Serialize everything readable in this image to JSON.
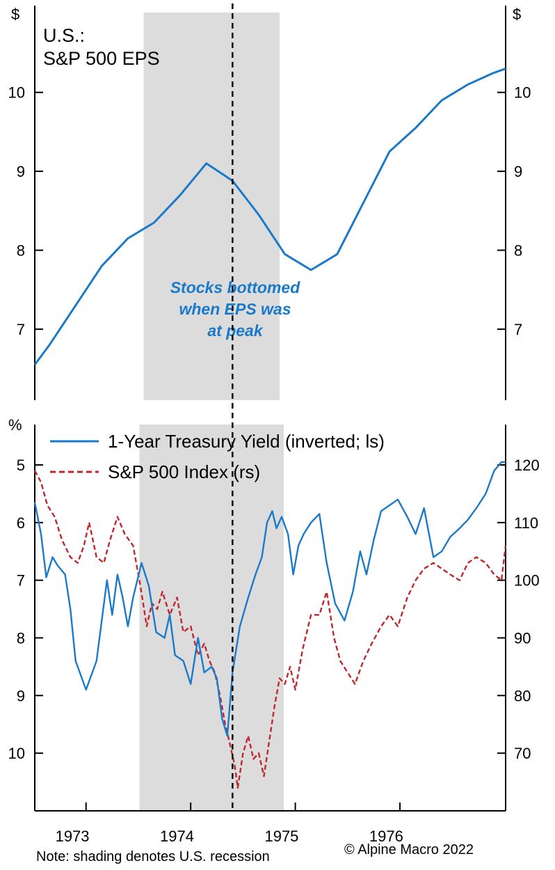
{
  "chart_data": [
    {
      "type": "line",
      "title": "U.S.:",
      "subtitle": "S&P 500 EPS",
      "y_unit_left": "$",
      "y_unit_right": "$",
      "ylim": [
        6.1,
        11.1
      ],
      "yticks": [
        7,
        8,
        9,
        10
      ],
      "annotation": [
        "Stocks bottomed",
        "when EPS was",
        "at peak"
      ],
      "recession": [
        1973.9,
        1975.2
      ],
      "marker_line": 1974.75,
      "color": "#1a7ac9",
      "x": [
        1972.86,
        1973.0,
        1973.25,
        1973.5,
        1973.75,
        1974.0,
        1974.25,
        1974.5,
        1974.75,
        1975.0,
        1975.25,
        1975.5,
        1975.75,
        1976.0,
        1976.25,
        1976.5,
        1976.75,
        1977.0,
        1977.25,
        1977.36
      ],
      "values": [
        6.55,
        6.8,
        7.3,
        7.8,
        8.15,
        8.35,
        8.7,
        9.1,
        8.88,
        8.45,
        7.95,
        7.75,
        7.95,
        8.6,
        9.25,
        9.55,
        9.9,
        10.1,
        10.25,
        10.3
      ]
    },
    {
      "type": "line",
      "y_unit_left": "%",
      "ylim_left": [
        11.0,
        4.3
      ],
      "yticks_left": [
        5,
        6,
        7,
        8,
        9,
        10
      ],
      "ylim_right": [
        60,
        127
      ],
      "yticks_right": [
        70,
        80,
        90,
        100,
        110,
        120
      ],
      "xticks": [
        "1973",
        "1974",
        "1975",
        "1976"
      ],
      "x_range": [
        1972.86,
        1977.36
      ],
      "series": [
        {
          "name": "1-Year Treasury Yield (inverted; ls)",
          "axis": "left",
          "color": "#1a7ac9",
          "style": "solid",
          "x": [
            1972.86,
            1972.92,
            1972.97,
            1973.03,
            1973.08,
            1973.15,
            1973.2,
            1973.25,
            1973.35,
            1973.45,
            1973.55,
            1973.6,
            1973.65,
            1973.7,
            1973.75,
            1973.8,
            1973.88,
            1973.95,
            1974.02,
            1974.1,
            1974.15,
            1974.2,
            1974.28,
            1974.35,
            1974.42,
            1974.48,
            1974.55,
            1974.6,
            1974.65,
            1974.7,
            1974.75,
            1974.82,
            1974.9,
            1974.97,
            1975.03,
            1975.08,
            1975.13,
            1975.17,
            1975.22,
            1975.28,
            1975.33,
            1975.38,
            1975.43,
            1975.5,
            1975.58,
            1975.65,
            1975.73,
            1975.82,
            1975.9,
            1975.97,
            1976.03,
            1976.1,
            1976.17,
            1976.25,
            1976.33,
            1976.42,
            1976.5,
            1976.58,
            1976.67,
            1976.75,
            1976.83,
            1976.92,
            1977.0,
            1977.08,
            1977.17,
            1977.25,
            1977.32,
            1977.36
          ],
          "values": [
            5.65,
            6.2,
            6.95,
            6.6,
            6.75,
            6.9,
            7.5,
            8.4,
            8.9,
            8.4,
            7.0,
            7.6,
            6.9,
            7.3,
            7.8,
            7.3,
            6.7,
            7.1,
            7.9,
            8.0,
            7.6,
            8.3,
            8.4,
            8.8,
            8.0,
            8.6,
            8.5,
            8.7,
            9.4,
            9.7,
            8.6,
            7.8,
            7.3,
            6.9,
            6.6,
            6.0,
            5.8,
            6.1,
            5.9,
            6.2,
            6.9,
            6.4,
            6.2,
            6.0,
            5.85,
            6.7,
            7.4,
            7.7,
            7.2,
            6.5,
            6.9,
            6.3,
            5.8,
            5.7,
            5.6,
            5.9,
            6.2,
            5.75,
            6.6,
            6.5,
            6.25,
            6.1,
            5.95,
            5.75,
            5.5,
            5.1,
            4.95,
            4.95
          ]
        },
        {
          "name": "S&P 500 Index (rs)",
          "axis": "right",
          "color": "#c0272d",
          "style": "dashed",
          "x": [
            1972.86,
            1972.92,
            1972.98,
            1973.05,
            1973.12,
            1973.2,
            1973.27,
            1973.33,
            1973.38,
            1973.45,
            1973.52,
            1973.58,
            1973.65,
            1973.72,
            1973.8,
            1973.87,
            1973.93,
            1973.98,
            1974.03,
            1974.08,
            1974.15,
            1974.22,
            1974.28,
            1974.35,
            1974.42,
            1974.48,
            1974.53,
            1974.58,
            1974.63,
            1974.68,
            1974.72,
            1974.77,
            1974.8,
            1974.85,
            1974.9,
            1974.95,
            1975.0,
            1975.05,
            1975.1,
            1975.15,
            1975.2,
            1975.25,
            1975.3,
            1975.35,
            1975.42,
            1975.5,
            1975.58,
            1975.65,
            1975.72,
            1975.78,
            1975.85,
            1975.92,
            1976.0,
            1976.08,
            1976.17,
            1976.25,
            1976.33,
            1976.42,
            1976.5,
            1976.58,
            1976.67,
            1976.75,
            1976.83,
            1976.92,
            1977.0,
            1977.08,
            1977.17,
            1977.25,
            1977.32,
            1977.36
          ],
          "values": [
            119,
            117,
            113,
            111,
            107,
            104,
            103,
            106,
            110,
            104,
            103,
            107,
            111,
            108,
            106,
            99,
            92,
            96,
            95,
            98,
            94,
            97,
            91,
            92,
            87,
            89,
            86,
            84,
            80,
            75,
            72,
            68,
            64,
            70,
            73,
            69,
            70,
            66,
            72,
            78,
            83,
            82,
            85,
            81,
            88,
            94,
            94,
            98,
            90,
            86,
            84,
            82,
            86,
            89,
            92,
            94,
            92,
            97,
            100,
            102,
            103,
            102,
            101,
            100,
            103,
            104,
            103,
            101,
            100,
            106
          ]
        }
      ]
    }
  ],
  "note": "Note: shading denotes U.S. recession",
  "copyright": "© Alpine Macro 2022"
}
